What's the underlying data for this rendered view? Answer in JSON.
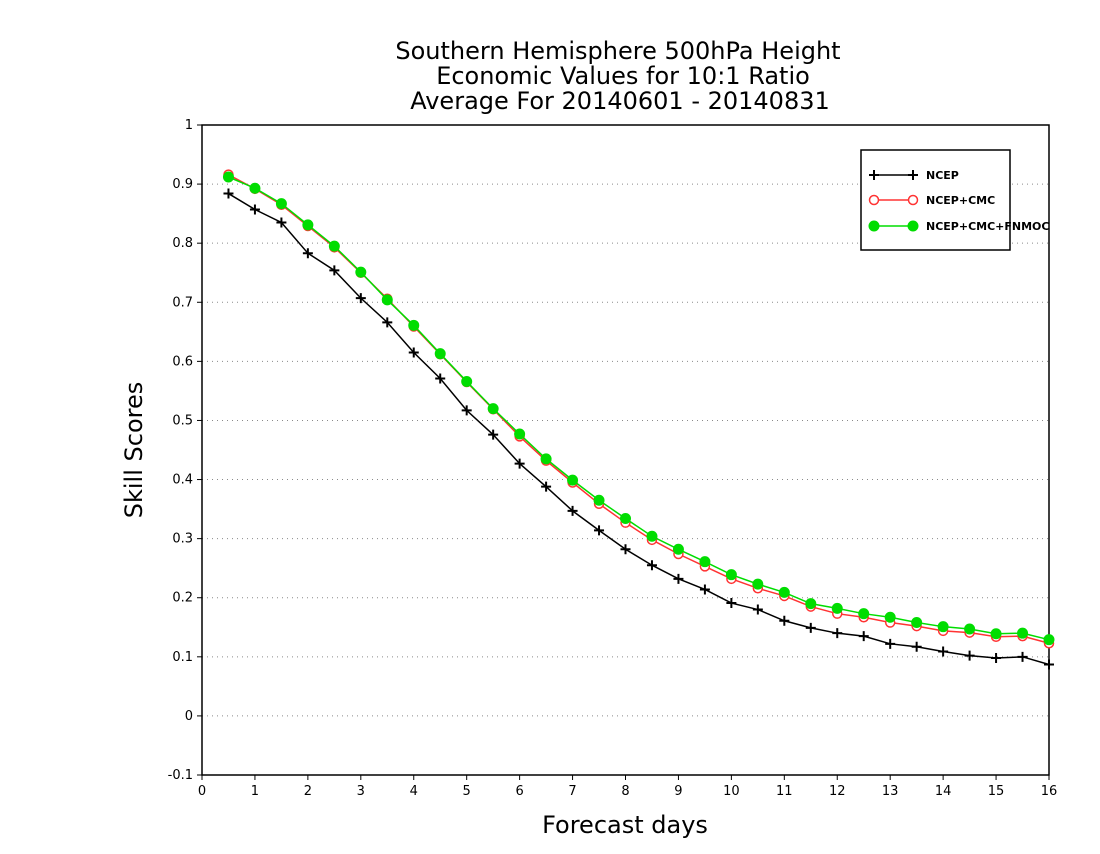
{
  "chart_data": {
    "type": "line",
    "title": [
      "Southern Hemisphere 500hPa Height",
      "Economic Values for 10:1 Ratio",
      "Average For 20140601 - 20140831"
    ],
    "xlabel": "Forecast days",
    "ylabel": "Skill Scores",
    "xlim": [
      0,
      16
    ],
    "ylim": [
      -0.1,
      1
    ],
    "xticks": [
      0,
      1,
      2,
      3,
      4,
      5,
      6,
      7,
      8,
      9,
      10,
      11,
      12,
      13,
      14,
      15,
      16
    ],
    "yticks": [
      -0.1,
      0,
      0.1,
      0.2,
      0.3,
      0.4,
      0.5,
      0.6,
      0.7,
      0.8,
      0.9,
      1
    ],
    "ytick_labels": [
      "-0.1",
      "0",
      "0.1",
      "0.2",
      "0.3",
      "0.4",
      "0.5",
      "0.6",
      "0.7",
      "0.8",
      "0.9",
      "1"
    ],
    "grid": "horizontal dotted",
    "legend_position": "top-right",
    "x": [
      0.5,
      1,
      1.5,
      2,
      2.5,
      3,
      3.5,
      4,
      4.5,
      5,
      5.5,
      6,
      6.5,
      7,
      7.5,
      8,
      8.5,
      9,
      9.5,
      10,
      10.5,
      11,
      11.5,
      12,
      12.5,
      13,
      13.5,
      14,
      14.5,
      15,
      15.5,
      16
    ],
    "series": [
      {
        "name": "NCEP",
        "color": "#000000",
        "marker": "plus",
        "values": [
          0.884,
          0.857,
          0.835,
          0.783,
          0.754,
          0.707,
          0.666,
          0.615,
          0.571,
          0.517,
          0.476,
          0.427,
          0.388,
          0.347,
          0.314,
          0.282,
          0.255,
          0.232,
          0.214,
          0.191,
          0.18,
          0.161,
          0.149,
          0.14,
          0.135,
          0.122,
          0.117,
          0.109,
          0.102,
          0.098,
          0.1,
          0.087
        ]
      },
      {
        "name": "NCEP+CMC",
        "color": "#ff3333",
        "marker": "open-circle",
        "values": [
          0.916,
          0.892,
          0.865,
          0.829,
          0.793,
          0.75,
          0.706,
          0.659,
          0.612,
          0.565,
          0.519,
          0.473,
          0.432,
          0.395,
          0.359,
          0.327,
          0.298,
          0.274,
          0.253,
          0.232,
          0.216,
          0.203,
          0.185,
          0.173,
          0.167,
          0.158,
          0.152,
          0.144,
          0.141,
          0.134,
          0.135,
          0.123
        ]
      },
      {
        "name": "NCEP+CMC+FNMOC",
        "color": "#00dd00",
        "marker": "filled-circle",
        "values": [
          0.912,
          0.893,
          0.867,
          0.831,
          0.795,
          0.751,
          0.704,
          0.661,
          0.613,
          0.566,
          0.52,
          0.477,
          0.435,
          0.399,
          0.365,
          0.334,
          0.304,
          0.282,
          0.261,
          0.239,
          0.223,
          0.209,
          0.19,
          0.182,
          0.173,
          0.167,
          0.158,
          0.151,
          0.147,
          0.139,
          0.14,
          0.129
        ]
      }
    ]
  }
}
